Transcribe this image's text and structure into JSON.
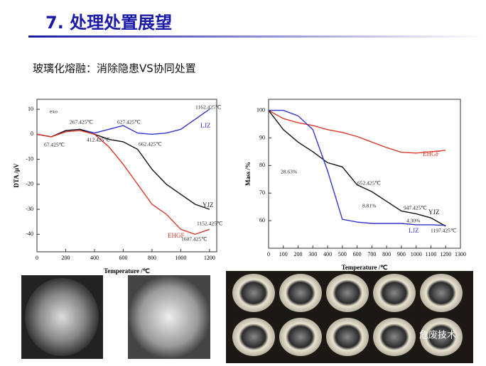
{
  "header": {
    "title": "7. 处理处置展望"
  },
  "subtitle": "玻璃化熔融：消除隐患VS协同处置",
  "watermark": "危废技术",
  "chart_data": [
    {
      "type": "line",
      "ylabel": "DTA /μV",
      "xlabel": "Temperature /℃",
      "x": [
        0,
        100,
        200,
        300,
        400,
        500,
        600,
        700,
        800,
        900,
        1000,
        1100,
        1200
      ],
      "xlim": [
        0,
        1250
      ],
      "xticks": [
        0,
        200,
        400,
        600,
        800,
        1000,
        1200
      ],
      "ylim": [
        -47,
        14
      ],
      "yticks": [
        10,
        0,
        -10,
        -20,
        -30,
        -40
      ],
      "series": [
        {
          "name": "LJZ",
          "color": "#3333cc",
          "values": [
            0,
            -1,
            1.5,
            2,
            0.5,
            2,
            3.5,
            0.5,
            0,
            0.5,
            2,
            6,
            10
          ]
        },
        {
          "name": "YJZ",
          "color": "#111111",
          "values": [
            0,
            -1,
            1.5,
            2,
            0,
            -2,
            -3,
            -6,
            -14,
            -20,
            -24,
            -28,
            -30
          ]
        },
        {
          "name": "EHGF",
          "color": "#d93a2b",
          "values": [
            0,
            -1,
            1,
            1.5,
            0,
            -5,
            -12,
            -20,
            -28,
            -32,
            -38,
            -40,
            -38
          ]
        }
      ],
      "annotations": [
        "exo",
        "267.425℃",
        "627.425℃",
        "1162.425℃",
        "67.425℃",
        "412.425℃",
        "662.425℃",
        "1152.425℃",
        "1607.425℃"
      ]
    },
    {
      "type": "line",
      "ylabel": "Mass /%",
      "xlabel": "Temperature /℃",
      "x": [
        0,
        100,
        200,
        300,
        400,
        500,
        600,
        700,
        800,
        900,
        1000,
        1100,
        1200
      ],
      "xlim": [
        0,
        1300
      ],
      "xticks": [
        0,
        100,
        200,
        300,
        400,
        500,
        600,
        700,
        800,
        900,
        1000,
        1100,
        1200,
        1300
      ],
      "ylim": [
        50,
        104
      ],
      "yticks": [
        60,
        70,
        80,
        90,
        100
      ],
      "series": [
        {
          "name": "EHGF",
          "color": "#d93a2b",
          "values": [
            100,
            97,
            95.5,
            94.5,
            93,
            92,
            90.5,
            88.5,
            86.5,
            84.8,
            84.5,
            85,
            85.5
          ]
        },
        {
          "name": "YJZ",
          "color": "#111111",
          "values": [
            100,
            93,
            88.5,
            85,
            81,
            79.5,
            73,
            70.5,
            67,
            63.5,
            62.5,
            61,
            58
          ]
        },
        {
          "name": "LJZ",
          "color": "#3333cc",
          "values": [
            100,
            100,
            98,
            93,
            78,
            60.5,
            59.5,
            59,
            59,
            59,
            58.5,
            58.5,
            58.3
          ]
        }
      ],
      "annotations": [
        "28.63%",
        "652.425℃",
        "8.81%",
        "947.425℃",
        "4.30%",
        "1197.425℃"
      ]
    }
  ]
}
